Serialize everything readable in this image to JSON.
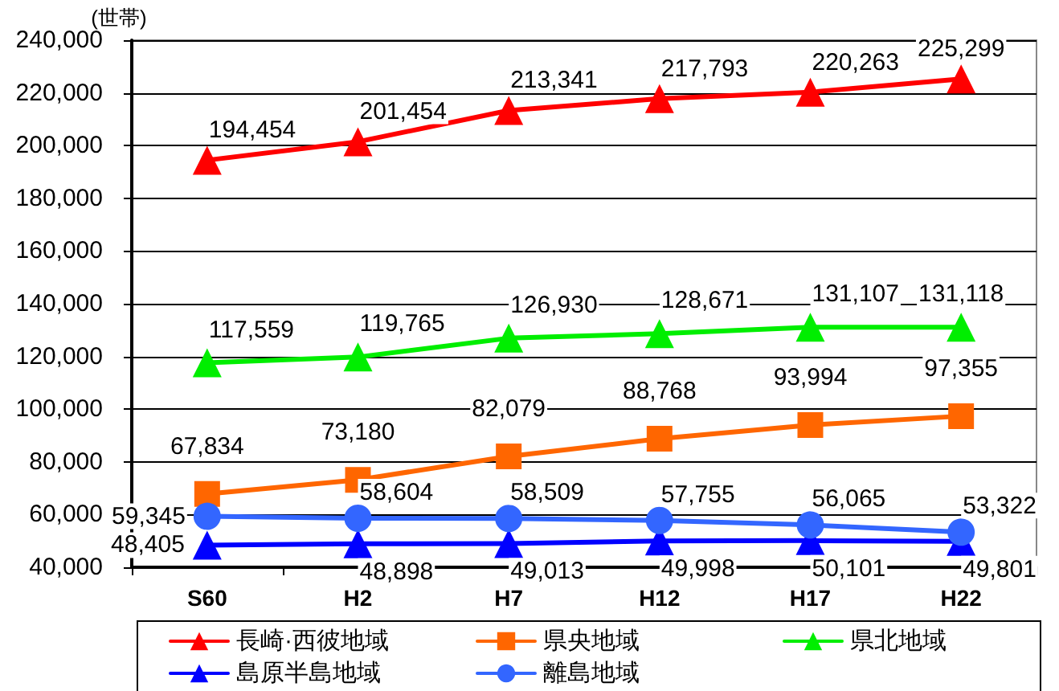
{
  "chart_data": {
    "type": "line",
    "ylabel": "(世帯)",
    "categories": [
      "S60",
      "H2",
      "H7",
      "H12",
      "H17",
      "H22"
    ],
    "series": [
      {
        "name": "長崎·西彼地域",
        "color": "#ff0000",
        "marker": "triangle",
        "values": [
          194454,
          201454,
          213341,
          217793,
          220263,
          225299
        ],
        "value_labels": [
          "194,454",
          "201,454",
          "213,341",
          "217,793",
          "220,263",
          "225,299"
        ]
      },
      {
        "name": "県央地域",
        "color": "#ff6600",
        "marker": "square",
        "values": [
          67834,
          73180,
          82079,
          88768,
          93994,
          97355
        ],
        "value_labels": [
          "67,834",
          "73,180",
          "82,079",
          "88,768",
          "93,994",
          "97,355"
        ]
      },
      {
        "name": "県北地域",
        "color": "#00ee00",
        "marker": "triangle",
        "values": [
          117559,
          119765,
          126930,
          128671,
          131107,
          131118
        ],
        "value_labels": [
          "117,559",
          "119,765",
          "126,930",
          "128,671",
          "131,107",
          "131,118"
        ]
      },
      {
        "name": "島原半島地域",
        "color": "#0000ff",
        "marker": "triangle",
        "values": [
          48405,
          48898,
          49013,
          49998,
          50101,
          49801
        ],
        "value_labels": [
          "48,405",
          "48,898",
          "49,013",
          "49,998",
          "50,101",
          "49,801"
        ]
      },
      {
        "name": "離島地域",
        "color": "#3366ff",
        "marker": "circle",
        "values": [
          59345,
          58604,
          58509,
          57755,
          56065,
          53322
        ],
        "value_labels": [
          "59,345",
          "58,604",
          "58,509",
          "57,755",
          "56,065",
          "53,322"
        ]
      }
    ],
    "ylim": [
      40000,
      240000
    ],
    "yticks": [
      {
        "value": 40000,
        "label": "40,000"
      },
      {
        "value": 60000,
        "label": "60,000"
      },
      {
        "value": 80000,
        "label": "80,000"
      },
      {
        "value": 100000,
        "label": "100,000"
      },
      {
        "value": 120000,
        "label": "120,000"
      },
      {
        "value": 140000,
        "label": "140,000"
      },
      {
        "value": 160000,
        "label": "160,000"
      },
      {
        "value": 180000,
        "label": "180,000"
      },
      {
        "value": 200000,
        "label": "200,000"
      },
      {
        "value": 220000,
        "label": "220,000"
      },
      {
        "value": 240000,
        "label": "240,000"
      }
    ],
    "grid": "y",
    "legend": "bottom"
  }
}
